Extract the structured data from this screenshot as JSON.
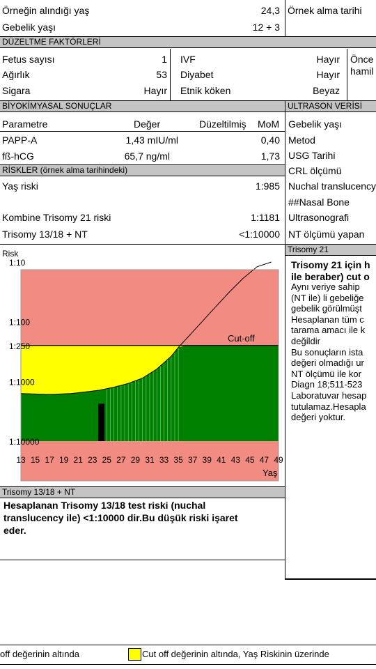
{
  "sample_age": {
    "label": "Örneğin alındığı yaş",
    "value": "24,3"
  },
  "gest_age": {
    "label": "Gebelik yaşı",
    "value": "12  +  3"
  },
  "sample_date_label": "Örnek alma tarihi",
  "correction": {
    "title": "DÜZELTME FAKTÖRLERİ",
    "fetus": {
      "label": "Fetus sayısı",
      "value": "1"
    },
    "weight": {
      "label": "Ağırlık",
      "value": "53"
    },
    "smoking": {
      "label": "Sigara",
      "value": "Hayır"
    },
    "ivf": {
      "label": "IVF",
      "value": "Hayır"
    },
    "diabetes": {
      "label": "Diyabet",
      "value": "Hayır"
    },
    "ethnic": {
      "label": "Etnik köken",
      "value": "Beyaz"
    },
    "prev_preg": {
      "line1": "Önce",
      "line2": "hamil"
    }
  },
  "biochem": {
    "title": "BİYOKİMYASAL SONUÇLAR",
    "headers": {
      "param": "Parametre",
      "value": "Değer",
      "corrected": "Düzeltilmiş",
      "mom": "MoM"
    },
    "rows": [
      {
        "param": "PAPP-A",
        "value": "1,43 mIU/ml",
        "mom": "0,40"
      },
      {
        "param": "fß-hCG",
        "value": "65,7 ng/ml",
        "mom": "1,73"
      }
    ]
  },
  "ultrasound": {
    "title": "ULTRASON VERİSİ",
    "items": [
      "Gebelik yaşı",
      "Metod",
      "USG Tarihi",
      "CRL ölçümü",
      "Nuchal translucency",
      "##Nasal Bone",
      "Ultrasonografi",
      "NT ölçümü yapan"
    ]
  },
  "risks": {
    "title": "RİSKLER (örnek alma tarihindeki)",
    "age": {
      "label": "Yaş riski",
      "value": "1:985"
    },
    "combined": {
      "label": "Kombine Trisomy 21 riski",
      "value": "1:1181"
    },
    "t1318": {
      "label": "Trisomy 13/18 + NT",
      "value": "<1:10000"
    }
  },
  "trisomy21": {
    "title": "Trisomy 21",
    "bold_line1": "Trisomy 21 için h",
    "bold_line2": "ile beraber) cut o",
    "lines": [
      "Aynı veriye sahip",
      "(NT ile) li gebeliğe",
      "gebelik görülmüşt",
      "Hesaplanan tüm c",
      "tarama amacı ile k",
      "değildir",
      "Bu sonuçların ista",
      "değeri olmadığı ur",
      "NT ölçümü ile  kor",
      "Diagn 18;511-523",
      "Laboratuvar hesap",
      "tutulamaz.Hesapla",
      "değeri yoktur."
    ]
  },
  "t1318_box": {
    "title": "Trisomy 13/18 + NT",
    "text_line1": "Hesaplanan Trisomy 13/18 test riski (nuchal",
    "text_line2": "translucency ile)  <1:10000 dir.Bu düşük riski işaret",
    "text_line3": "eder."
  },
  "legend": {
    "item1": "off değerinin altında",
    "item2": "Cut off değerinin  altında, Yaş Riskinin üzerinde",
    "yellow": "#ffff00"
  },
  "colors": {
    "red": "#f28b82",
    "yellow": "#ffff00",
    "green": "#008000",
    "band": "#c4c4c4"
  },
  "chart_data": {
    "type": "area",
    "ylabel": "Risk",
    "xlabel": "Yaş",
    "y_ticks": [
      "1:10",
      "1:100",
      "1:250",
      "1:1000",
      "1:10000"
    ],
    "y_tick_values": [
      10,
      100,
      250,
      1000,
      10000
    ],
    "x_ticks": [
      13,
      15,
      17,
      19,
      21,
      23,
      25,
      27,
      29,
      31,
      33,
      35,
      37,
      39,
      41,
      43,
      45,
      47,
      49
    ],
    "cutoff": {
      "label": "Cut-off",
      "value": 250
    },
    "age_risk_curve": {
      "x": [
        13,
        17,
        20,
        22,
        24,
        26,
        28,
        30,
        32,
        34,
        35,
        36,
        38,
        40,
        42,
        44,
        46,
        48
      ],
      "y": [
        1600,
        1650,
        1600,
        1500,
        1400,
        1250,
        1080,
        880,
        620,
        380,
        270,
        200,
        110,
        60,
        33,
        19,
        12,
        10
      ]
    },
    "patient": {
      "age": 24.3,
      "risk": 1181
    }
  }
}
